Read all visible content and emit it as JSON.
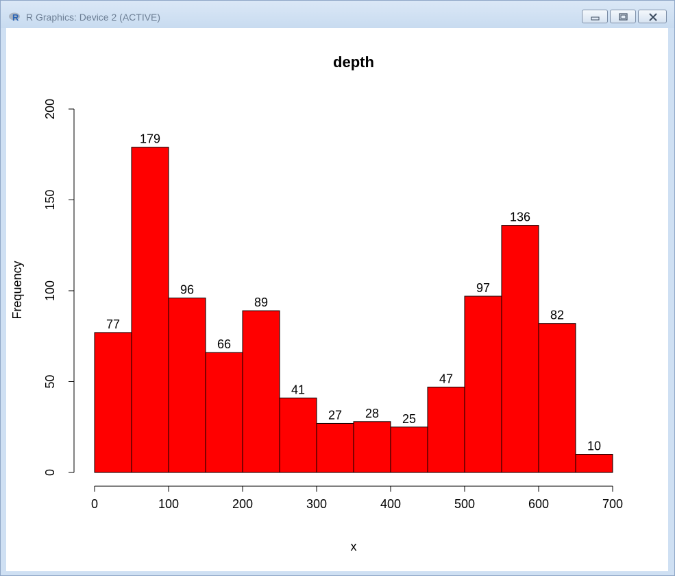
{
  "window": {
    "title": "R Graphics: Device 2 (ACTIVE)",
    "icon": "r-logo-icon",
    "controls": [
      "minimize-icon",
      "restore-icon",
      "close-icon"
    ]
  },
  "chart_data": {
    "type": "bar",
    "title": "depth",
    "xlabel": "x",
    "ylabel": "Frequency",
    "bins": [
      [
        0,
        50
      ],
      [
        50,
        100
      ],
      [
        100,
        150
      ],
      [
        150,
        200
      ],
      [
        200,
        250
      ],
      [
        250,
        300
      ],
      [
        300,
        350
      ],
      [
        350,
        400
      ],
      [
        400,
        450
      ],
      [
        450,
        500
      ],
      [
        500,
        550
      ],
      [
        550,
        600
      ],
      [
        600,
        650
      ],
      [
        650,
        700
      ]
    ],
    "values": [
      77,
      179,
      96,
      66,
      89,
      41,
      27,
      28,
      25,
      47,
      97,
      136,
      82,
      10
    ],
    "data_labels": [
      "77",
      "179",
      "96",
      "66",
      "89",
      "41",
      "27",
      "28",
      "25",
      "47",
      "97",
      "136",
      "82",
      "10"
    ],
    "xlim": [
      0,
      700
    ],
    "ylim": [
      0,
      200
    ],
    "x_ticks": [
      "0",
      "100",
      "200",
      "300",
      "400",
      "500",
      "600",
      "700"
    ],
    "y_ticks": [
      "0",
      "50",
      "100",
      "150",
      "200"
    ],
    "bar_color": "#ff0000",
    "grid": false,
    "legend": "none"
  }
}
